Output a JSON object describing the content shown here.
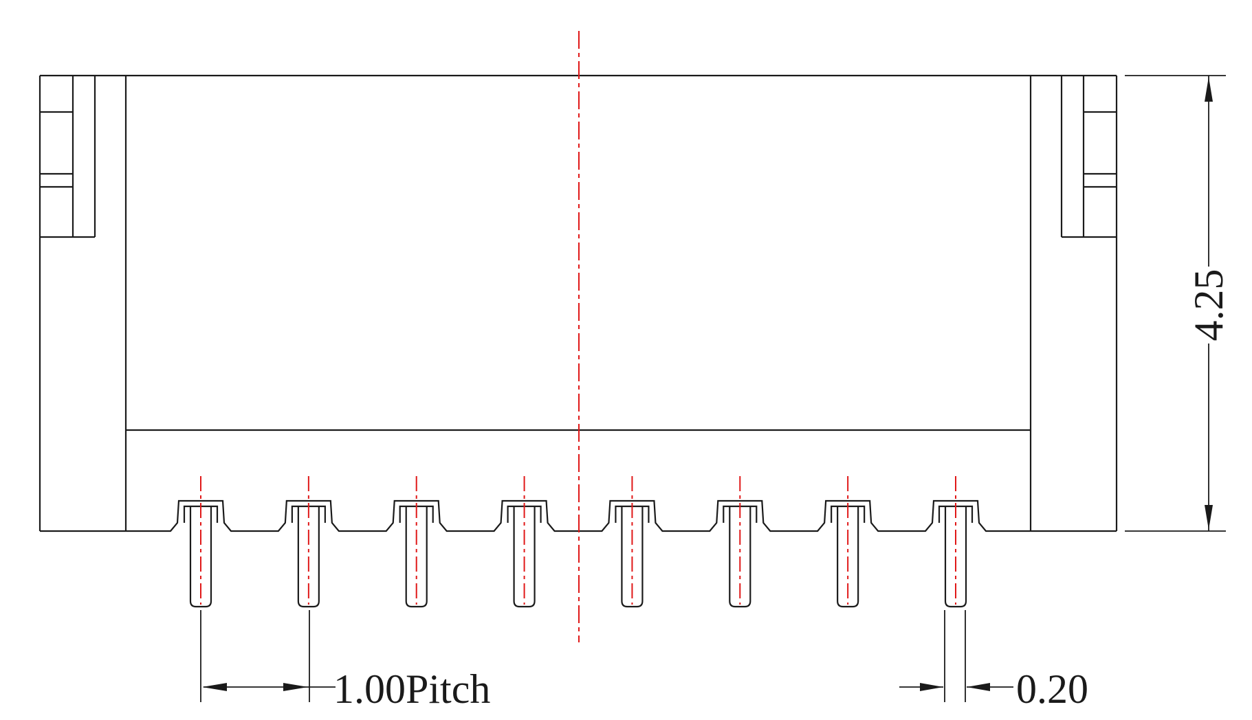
{
  "diagram": {
    "pin_count": 8,
    "dimensions": {
      "pitch_label": "1.00Pitch",
      "pin_width_label": "0.20",
      "height_label": "4.25"
    },
    "colors": {
      "outline": "#1a1a1a",
      "centerline": "#e01818",
      "background": "#ffffff"
    }
  }
}
